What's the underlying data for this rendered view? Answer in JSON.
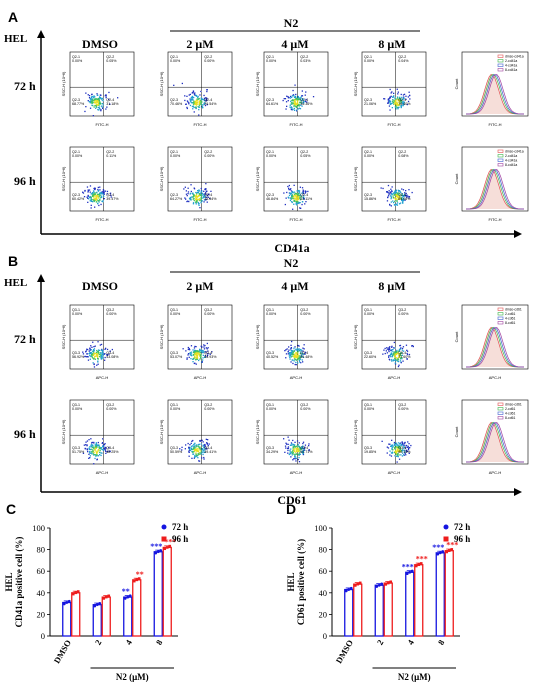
{
  "panels": {
    "A": {
      "letter": "A",
      "cell_line": "HEL",
      "treatment": "N2",
      "columns": [
        "DMSO",
        "2 μM",
        "4 μM",
        "8 μM"
      ],
      "rows": [
        "72 h",
        "96 h"
      ],
      "marker": "CD41a",
      "x_axis": "FITC-H",
      "y_axis": "SSC-H (10^6)",
      "quadrant_labels": [
        "Q2-1",
        "Q2-2",
        "Q2-3",
        "Q2-4"
      ],
      "quadrants": [
        [
          [
            "0.00%",
            "0.05%",
            "68.77%",
            "31.18%"
          ],
          [
            "0.00%",
            "0.00%",
            "70.46%",
            "29.54%"
          ],
          [
            "0.00%",
            "0.03%",
            "64.61%",
            "35.36%"
          ],
          [
            "0.00%",
            "0.04%",
            "21.06%",
            "78.40%"
          ]
        ],
        [
          [
            "0.00%",
            "0.11%",
            "60.42%",
            "39.47%"
          ],
          [
            "0.00%",
            "0.00%",
            "64.27%",
            "35.64%"
          ],
          [
            "0.00%",
            "0.05%",
            "46.84%",
            "53.11%"
          ],
          [
            "0.00%",
            "0.08%",
            "15.86%",
            "84.08%"
          ]
        ]
      ],
      "legend": [
        "dmso-cd41a",
        "2-cd41a",
        "4-cd41a",
        "8-cd41a"
      ]
    },
    "B": {
      "letter": "B",
      "cell_line": "HEL",
      "treatment": "N2",
      "columns": [
        "DMSO",
        "2 μM",
        "4 μM",
        "8 μM"
      ],
      "rows": [
        "72 h",
        "96 h"
      ],
      "marker": "CD61",
      "x_axis": "APC-H",
      "y_axis": "SSC-H (10^6)",
      "quadrant_labels": [
        "Q3-1",
        "Q3-2",
        "Q3-3",
        "Q3-4"
      ],
      "quadrants": [
        [
          [
            "0.00%",
            "0.00%",
            "56.92%",
            "43.08%"
          ],
          [
            "0.00%",
            "0.00%",
            "53.07%",
            "46.93%"
          ],
          [
            "0.00%",
            "0.00%",
            "40.52%",
            "59.48%"
          ],
          [
            "0.00%",
            "0.00%",
            "22.60%",
            "77.60%"
          ]
        ],
        [
          [
            "0.00%",
            "0.00%",
            "51.75%",
            "48.25%"
          ],
          [
            "0.00%",
            "0.00%",
            "50.59%",
            "49.41%"
          ],
          [
            "0.00%",
            "0.00%",
            "34.29%",
            "65.71%"
          ],
          [
            "0.00%",
            "0.00%",
            "19.85%",
            "80.15%"
          ]
        ]
      ],
      "legend": [
        "dmso-cd61",
        "2-cd61",
        "4-cd61",
        "8-cd61"
      ]
    }
  },
  "hist_legend_colors": [
    "#e05050",
    "#3cb44b",
    "#4060d0",
    "#a040a0"
  ],
  "bar_series_colors": {
    "72 h": "#1515e0",
    "96 h": "#ee1c1c"
  },
  "chart_data": [
    {
      "type": "bar",
      "panel": "C",
      "ylabel": "CD41a positive cell (%)",
      "ylabel_prefix": "HEL",
      "categories": [
        "DMSO",
        "2",
        "4",
        "8"
      ],
      "xlabel": "N2 (μM)",
      "ylim": [
        0,
        100
      ],
      "yticks": [
        0,
        20,
        40,
        60,
        80,
        100
      ],
      "series": [
        {
          "name": "72 h",
          "values": [
            31,
            29,
            36,
            78
          ]
        },
        {
          "name": "96 h",
          "values": [
            40,
            36,
            52,
            82
          ]
        }
      ],
      "significance": [
        {
          "category": "4",
          "series": "72 h",
          "label": "**"
        },
        {
          "category": "4",
          "series": "96 h",
          "label": "**"
        },
        {
          "category": "8",
          "series": "72 h",
          "label": "***"
        },
        {
          "category": "8",
          "series": "96 h",
          "label": "***"
        }
      ]
    },
    {
      "type": "bar",
      "panel": "D",
      "ylabel": "CD61 positive cell (%)",
      "ylabel_prefix": "HEL",
      "categories": [
        "DMSO",
        "2",
        "4",
        "8"
      ],
      "xlabel": "N2 (μM)",
      "ylim": [
        0,
        100
      ],
      "yticks": [
        0,
        20,
        40,
        60,
        80,
        100
      ],
      "series": [
        {
          "name": "72 h",
          "values": [
            43,
            47,
            59,
            77
          ]
        },
        {
          "name": "96 h",
          "values": [
            48,
            49,
            66,
            79
          ]
        }
      ],
      "significance": [
        {
          "category": "4",
          "series": "72 h",
          "label": "***"
        },
        {
          "category": "4",
          "series": "96 h",
          "label": "***"
        },
        {
          "category": "8",
          "series": "72 h",
          "label": "***"
        },
        {
          "category": "8",
          "series": "96 h",
          "label": "***"
        }
      ]
    }
  ]
}
